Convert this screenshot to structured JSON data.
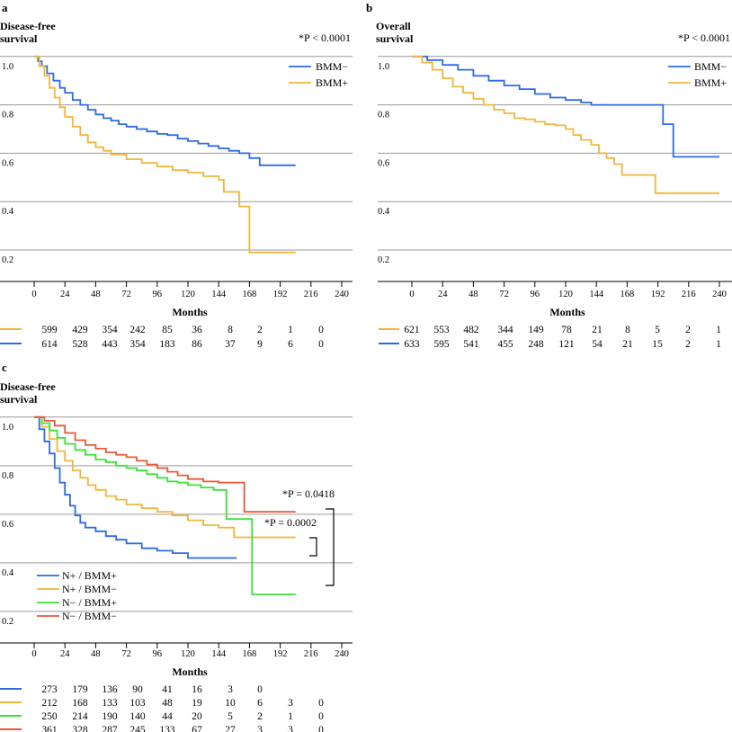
{
  "colors": {
    "blue": "#2F6BE6",
    "yellow": "#F2B63C",
    "green": "#3CE33C",
    "red": "#E85A3A",
    "grid": "#9a9a9a",
    "axis": "#000000"
  },
  "chart_data": [
    {
      "panel": "a",
      "type": "line",
      "title": "",
      "ylabel_lines": [
        "Disease-free",
        "survival"
      ],
      "xlabel": "Months",
      "xticks": [
        0,
        24,
        48,
        72,
        96,
        120,
        144,
        168,
        192,
        216,
        240
      ],
      "yticks": [
        1.0,
        0.8,
        0.6,
        0.4,
        0.2
      ],
      "ytick_labels": [
        "1.0",
        "0.8",
        "0.6",
        "0.4",
        "0.2"
      ],
      "xlim": [
        0,
        240
      ],
      "ylim": [
        0.07,
        1.04
      ],
      "legend_position": "top-right",
      "pvalue": "*P < 0.0001",
      "series": [
        {
          "name": "BMM−",
          "color": "blue",
          "points": [
            [
              0,
              1.0
            ],
            [
              3,
              0.98
            ],
            [
              6,
              0.96
            ],
            [
              10,
              0.93
            ],
            [
              15,
              0.9
            ],
            [
              20,
              0.87
            ],
            [
              24,
              0.85
            ],
            [
              30,
              0.82
            ],
            [
              36,
              0.8
            ],
            [
              42,
              0.78
            ],
            [
              48,
              0.76
            ],
            [
              54,
              0.745
            ],
            [
              60,
              0.735
            ],
            [
              66,
              0.72
            ],
            [
              72,
              0.71
            ],
            [
              80,
              0.7
            ],
            [
              88,
              0.69
            ],
            [
              96,
              0.68
            ],
            [
              104,
              0.675
            ],
            [
              112,
              0.66
            ],
            [
              120,
              0.65
            ],
            [
              128,
              0.64
            ],
            [
              136,
              0.63
            ],
            [
              144,
              0.62
            ],
            [
              152,
              0.61
            ],
            [
              160,
              0.6
            ],
            [
              168,
              0.58
            ],
            [
              176,
              0.55
            ],
            [
              204,
              0.55
            ]
          ]
        },
        {
          "name": "BMM+",
          "color": "yellow",
          "points": [
            [
              0,
              1.0
            ],
            [
              4,
              0.96
            ],
            [
              8,
              0.92
            ],
            [
              12,
              0.87
            ],
            [
              16,
              0.83
            ],
            [
              20,
              0.79
            ],
            [
              24,
              0.75
            ],
            [
              30,
              0.71
            ],
            [
              36,
              0.675
            ],
            [
              42,
              0.645
            ],
            [
              48,
              0.625
            ],
            [
              54,
              0.61
            ],
            [
              60,
              0.595
            ],
            [
              72,
              0.575
            ],
            [
              84,
              0.56
            ],
            [
              96,
              0.545
            ],
            [
              108,
              0.53
            ],
            [
              120,
              0.52
            ],
            [
              132,
              0.505
            ],
            [
              144,
              0.49
            ],
            [
              148,
              0.44
            ],
            [
              160,
              0.38
            ],
            [
              168,
              0.19
            ],
            [
              204,
              0.19
            ]
          ]
        }
      ],
      "risk_table": {
        "rows": [
          {
            "color": "yellow",
            "values": [
              "599",
              "429",
              "354",
              "242",
              "85",
              "36",
              "8",
              "2",
              "1",
              "0"
            ]
          },
          {
            "color": "blue",
            "values": [
              "614",
              "528",
              "443",
              "354",
              "183",
              "86",
              "37",
              "9",
              "6",
              "0"
            ]
          }
        ]
      }
    },
    {
      "panel": "b",
      "type": "line",
      "title": "",
      "ylabel_lines": [
        "Overall",
        "survival"
      ],
      "xlabel": "Months",
      "xticks": [
        0,
        24,
        48,
        72,
        96,
        120,
        144,
        168,
        192,
        216,
        240
      ],
      "yticks": [
        1.0,
        0.8,
        0.6,
        0.4,
        0.2
      ],
      "ytick_labels": [
        "1.0",
        "0.8",
        "0.6",
        "0.4",
        "0.2"
      ],
      "xlim": [
        0,
        240
      ],
      "ylim": [
        0.07,
        1.04
      ],
      "legend_position": "top-right",
      "pvalue": "*P < 0.0001",
      "series": [
        {
          "name": "BMM−",
          "color": "blue",
          "points": [
            [
              0,
              1.0
            ],
            [
              12,
              0.985
            ],
            [
              24,
              0.965
            ],
            [
              36,
              0.945
            ],
            [
              48,
              0.92
            ],
            [
              60,
              0.9
            ],
            [
              72,
              0.88
            ],
            [
              84,
              0.865
            ],
            [
              96,
              0.845
            ],
            [
              108,
              0.83
            ],
            [
              120,
              0.82
            ],
            [
              132,
              0.81
            ],
            [
              140,
              0.8
            ],
            [
              150,
              0.8
            ],
            [
              160,
              0.8
            ],
            [
              170,
              0.8
            ],
            [
              192,
              0.8
            ],
            [
              196,
              0.72
            ],
            [
              203,
              0.72
            ],
            [
              204,
              0.585
            ],
            [
              240,
              0.585
            ]
          ]
        },
        {
          "name": "BMM+",
          "color": "yellow",
          "points": [
            [
              0,
              1.0
            ],
            [
              8,
              0.975
            ],
            [
              16,
              0.945
            ],
            [
              24,
              0.91
            ],
            [
              32,
              0.875
            ],
            [
              40,
              0.85
            ],
            [
              48,
              0.825
            ],
            [
              56,
              0.8
            ],
            [
              64,
              0.78
            ],
            [
              72,
              0.765
            ],
            [
              80,
              0.745
            ],
            [
              88,
              0.74
            ],
            [
              96,
              0.73
            ],
            [
              104,
              0.72
            ],
            [
              112,
              0.715
            ],
            [
              120,
              0.7
            ],
            [
              126,
              0.675
            ],
            [
              132,
              0.655
            ],
            [
              140,
              0.635
            ],
            [
              146,
              0.6
            ],
            [
              152,
              0.58
            ],
            [
              158,
              0.555
            ],
            [
              164,
              0.51
            ],
            [
              176,
              0.51
            ],
            [
              186,
              0.51
            ],
            [
              190,
              0.435
            ],
            [
              240,
              0.435
            ]
          ]
        }
      ],
      "risk_table": {
        "rows": [
          {
            "color": "yellow",
            "values": [
              "621",
              "553",
              "482",
              "344",
              "149",
              "78",
              "21",
              "8",
              "5",
              "2",
              "1"
            ]
          },
          {
            "color": "blue",
            "values": [
              "633",
              "595",
              "541",
              "455",
              "248",
              "121",
              "54",
              "21",
              "15",
              "2",
              "1"
            ]
          }
        ]
      }
    },
    {
      "panel": "c",
      "type": "line",
      "title": "",
      "ylabel_lines": [
        "Disease-free",
        "survival"
      ],
      "xlabel": "Months",
      "xticks": [
        0,
        24,
        48,
        72,
        96,
        120,
        144,
        168,
        192,
        216,
        240
      ],
      "yticks": [
        1.0,
        0.8,
        0.6,
        0.4,
        0.2
      ],
      "ytick_labels": [
        "1.0",
        "0.8",
        "0.6",
        "0.4",
        "0.2"
      ],
      "xlim": [
        0,
        240
      ],
      "ylim": [
        0.07,
        1.04
      ],
      "legend_position": "bottom-left",
      "pvalues": [
        "*P = 0.0418",
        "*P = 0.0002"
      ],
      "series": [
        {
          "name": "N+ / BMM+",
          "color": "blue",
          "points": [
            [
              0,
              1.0
            ],
            [
              4,
              0.95
            ],
            [
              8,
              0.9
            ],
            [
              12,
              0.85
            ],
            [
              16,
              0.79
            ],
            [
              20,
              0.73
            ],
            [
              24,
              0.68
            ],
            [
              28,
              0.635
            ],
            [
              32,
              0.595
            ],
            [
              36,
              0.565
            ],
            [
              40,
              0.545
            ],
            [
              48,
              0.53
            ],
            [
              56,
              0.51
            ],
            [
              64,
              0.495
            ],
            [
              72,
              0.48
            ],
            [
              84,
              0.46
            ],
            [
              96,
              0.45
            ],
            [
              108,
              0.44
            ],
            [
              120,
              0.42
            ],
            [
              140,
              0.42
            ],
            [
              158,
              0.42
            ]
          ]
        },
        {
          "name": "N+ / BMM−",
          "color": "yellow",
          "points": [
            [
              0,
              1.0
            ],
            [
              6,
              0.96
            ],
            [
              12,
              0.91
            ],
            [
              18,
              0.86
            ],
            [
              24,
              0.82
            ],
            [
              30,
              0.78
            ],
            [
              36,
              0.75
            ],
            [
              42,
              0.72
            ],
            [
              48,
              0.7
            ],
            [
              56,
              0.675
            ],
            [
              64,
              0.66
            ],
            [
              72,
              0.64
            ],
            [
              84,
              0.625
            ],
            [
              96,
              0.61
            ],
            [
              108,
              0.595
            ],
            [
              120,
              0.575
            ],
            [
              132,
              0.555
            ],
            [
              144,
              0.545
            ],
            [
              154,
              0.545
            ],
            [
              156,
              0.505
            ],
            [
              168,
              0.505
            ],
            [
              204,
              0.505
            ]
          ]
        },
        {
          "name": "N− / BMM+",
          "color": "green",
          "points": [
            [
              0,
              1.0
            ],
            [
              6,
              0.975
            ],
            [
              12,
              0.945
            ],
            [
              18,
              0.915
            ],
            [
              24,
              0.89
            ],
            [
              32,
              0.865
            ],
            [
              40,
              0.845
            ],
            [
              48,
              0.825
            ],
            [
              56,
              0.815
            ],
            [
              64,
              0.8
            ],
            [
              72,
              0.79
            ],
            [
              80,
              0.78
            ],
            [
              88,
              0.765
            ],
            [
              96,
              0.75
            ],
            [
              104,
              0.735
            ],
            [
              112,
              0.73
            ],
            [
              120,
              0.72
            ],
            [
              130,
              0.71
            ],
            [
              140,
              0.7
            ],
            [
              148,
              0.7
            ],
            [
              150,
              0.58
            ],
            [
              158,
              0.58
            ],
            [
              168,
              0.58
            ],
            [
              170,
              0.27
            ],
            [
              204,
              0.27
            ]
          ]
        },
        {
          "name": "N− / BMM−",
          "color": "red",
          "points": [
            [
              0,
              1.0
            ],
            [
              8,
              0.985
            ],
            [
              16,
              0.965
            ],
            [
              24,
              0.935
            ],
            [
              32,
              0.905
            ],
            [
              40,
              0.885
            ],
            [
              48,
              0.87
            ],
            [
              56,
              0.855
            ],
            [
              64,
              0.845
            ],
            [
              72,
              0.835
            ],
            [
              80,
              0.82
            ],
            [
              88,
              0.805
            ],
            [
              96,
              0.79
            ],
            [
              104,
              0.775
            ],
            [
              112,
              0.76
            ],
            [
              120,
              0.745
            ],
            [
              132,
              0.735
            ],
            [
              144,
              0.73
            ],
            [
              158,
              0.73
            ],
            [
              164,
              0.61
            ],
            [
              204,
              0.61
            ]
          ]
        }
      ],
      "risk_table": {
        "rows": [
          {
            "color": "blue",
            "values": [
              "273",
              "179",
              "136",
              "90",
              "41",
              "16",
              "3",
              "0"
            ]
          },
          {
            "color": "yellow",
            "values": [
              "212",
              "168",
              "133",
              "103",
              "48",
              "19",
              "10",
              "6",
              "3",
              "0"
            ]
          },
          {
            "color": "green",
            "values": [
              "250",
              "214",
              "190",
              "140",
              "44",
              "20",
              "5",
              "2",
              "1",
              "0"
            ]
          },
          {
            "color": "red",
            "values": [
              "361",
              "328",
              "287",
              "245",
              "133",
              "67",
              "27",
              "3",
              "3",
              "0"
            ]
          }
        ]
      }
    }
  ]
}
